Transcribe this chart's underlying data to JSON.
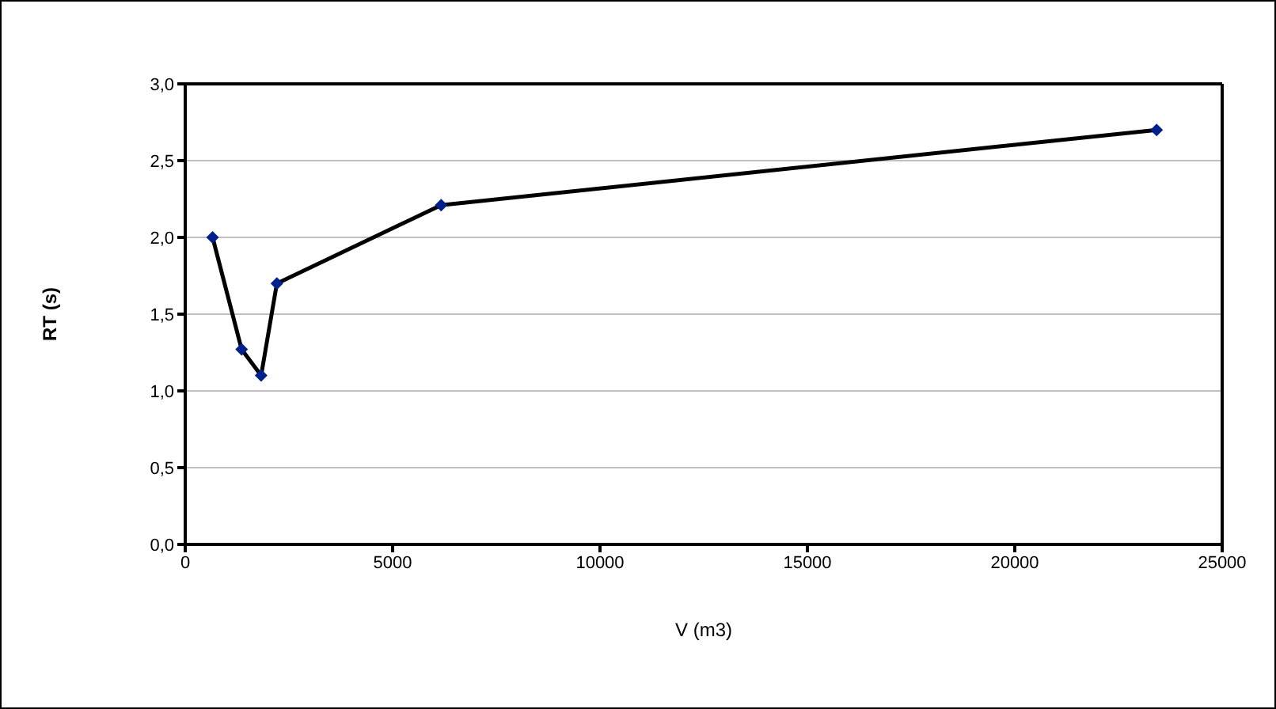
{
  "chart_data": {
    "type": "line",
    "xlabel": "V  (m3)",
    "ylabel": "RT (s)",
    "x": [
      660,
      1360,
      1830,
      2210,
      6170,
      23420
    ],
    "series": [
      {
        "color": "#000000",
        "colors": [
          "#00208c",
          "#00208c",
          "#00208c",
          "#00208c",
          "#00208c",
          "#00208c"
        ],
        "values": [
          2.0,
          1.27,
          1.1,
          1.7,
          2.21,
          2.7
        ]
      }
    ],
    "xlim": [
      0,
      25000
    ],
    "xticks": [
      0,
      5000,
      10000,
      15000,
      20000,
      25000
    ],
    "ylim": [
      0,
      3
    ],
    "yticks": [
      {
        "value": 0,
        "label": "0,0"
      },
      {
        "value": 0.5,
        "label": "0,5"
      },
      {
        "value": 1,
        "label": "1,0"
      },
      {
        "value": 1.5,
        "label": "1,5"
      },
      {
        "value": 2,
        "label": "2,0"
      },
      {
        "value": 2.5,
        "label": "2,5"
      },
      {
        "value": 3,
        "label": "3,0"
      }
    ],
    "grid": "y",
    "legend": false,
    "marker": "diamond",
    "line_style": "solid"
  }
}
